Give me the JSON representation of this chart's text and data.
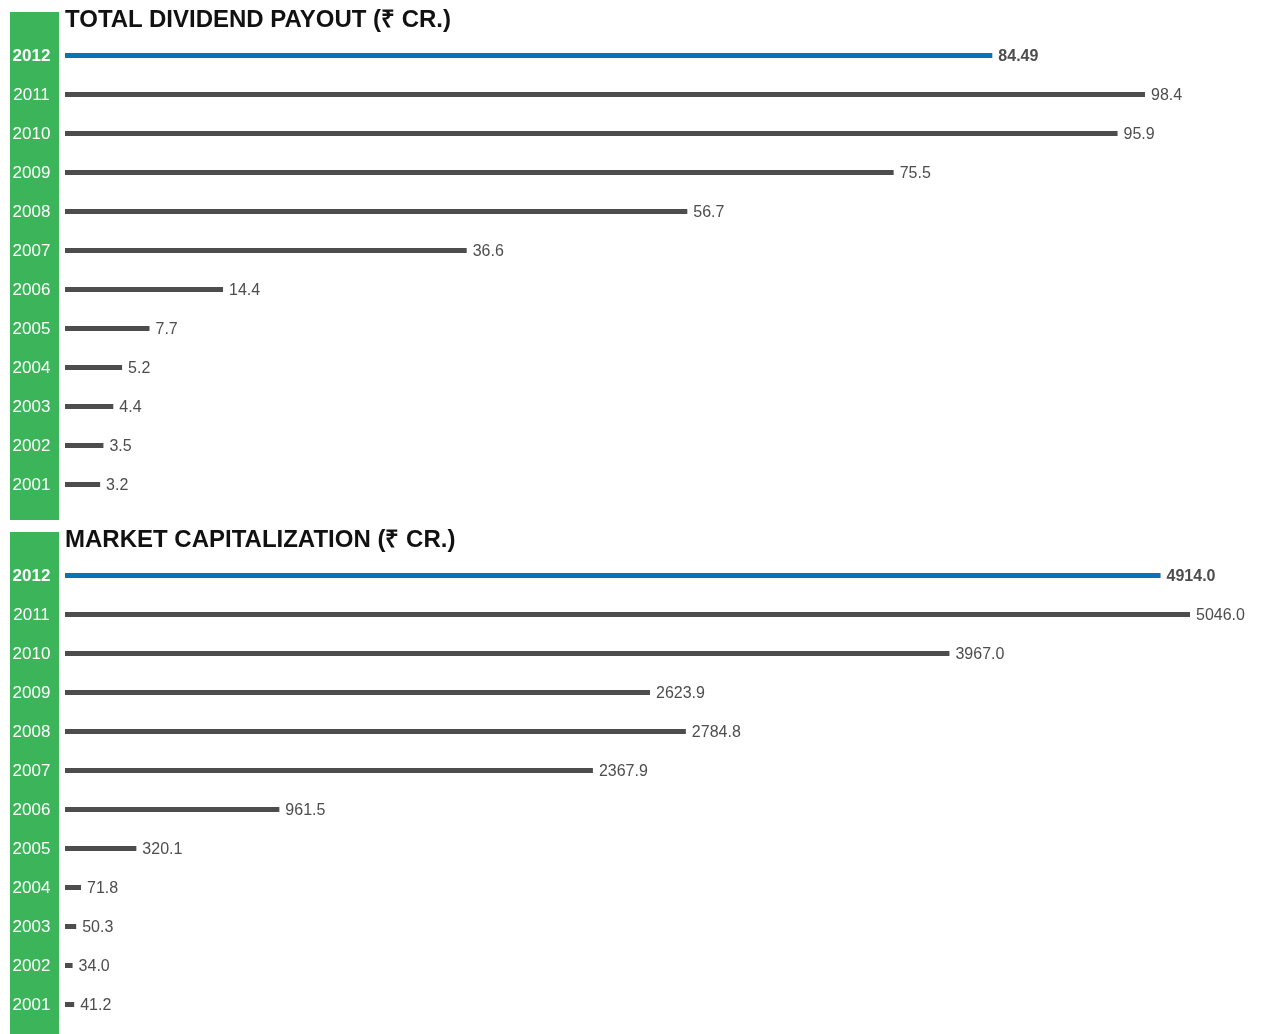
{
  "chart_data": [
    {
      "type": "bar",
      "orientation": "horizontal",
      "title": "TOTAL DIVIDEND PAYOUT (₹ CR.)",
      "categories": [
        "2012",
        "2011",
        "2010",
        "2009",
        "2008",
        "2007",
        "2006",
        "2005",
        "2004",
        "2003",
        "2002",
        "2001"
      ],
      "values": [
        84.49,
        98.4,
        95.9,
        75.5,
        56.7,
        36.6,
        14.4,
        7.7,
        5.2,
        4.4,
        3.5,
        3.2
      ],
      "value_labels": [
        "84.49",
        "98.4",
        "95.9",
        "75.5",
        "56.7",
        "36.6",
        "14.4",
        "7.7",
        "5.2",
        "4.4",
        "3.5",
        "3.2"
      ],
      "colors": [
        "#0b72b5",
        "#4d4d4d",
        "#4d4d4d",
        "#4d4d4d",
        "#4d4d4d",
        "#4d4d4d",
        "#4d4d4d",
        "#4d4d4d",
        "#4d4d4d",
        "#4d4d4d",
        "#4d4d4d",
        "#4d4d4d"
      ]
    },
    {
      "type": "bar",
      "orientation": "horizontal",
      "title": "MARKET CAPITALIZATION (₹ CR.)",
      "categories": [
        "2012",
        "2011",
        "2010",
        "2009",
        "2008",
        "2007",
        "2006",
        "2005",
        "2004",
        "2003",
        "2002",
        "2001"
      ],
      "values": [
        4914.0,
        5046.0,
        3967.0,
        2623.9,
        2784.8,
        2367.9,
        961.5,
        320.1,
        71.8,
        50.3,
        34.0,
        41.2
      ],
      "value_labels": [
        "4914.0",
        "5046.0",
        "3967.0",
        "2623.9",
        "2784.8",
        "2367.9",
        "961.5",
        "320.1",
        "71.8",
        "50.3",
        "34.0",
        "41.2"
      ],
      "colors": [
        "#0b72b5",
        "#4d4d4d",
        "#4d4d4d",
        "#4d4d4d",
        "#4d4d4d",
        "#4d4d4d",
        "#4d4d4d",
        "#4d4d4d",
        "#4d4d4d",
        "#4d4d4d",
        "#4d4d4d",
        "#4d4d4d"
      ]
    }
  ]
}
